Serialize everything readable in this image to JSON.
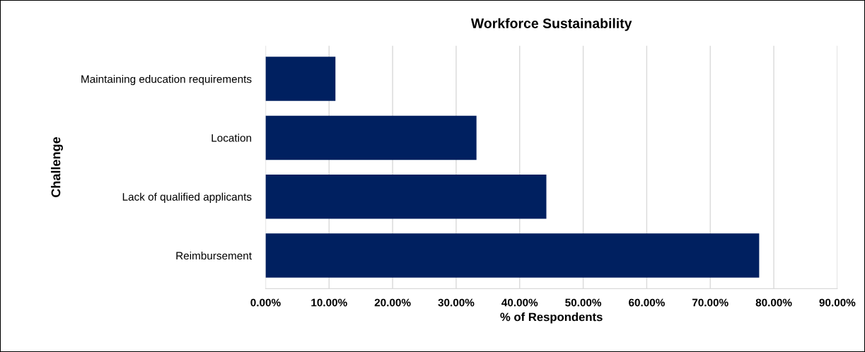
{
  "chart_data": {
    "type": "bar",
    "orientation": "horizontal",
    "title": "Workforce Sustainability",
    "xlabel": "% of Respondents",
    "ylabel": "Challenge",
    "categories": [
      "Maintaining education requirements",
      "Location",
      "Lack of qualified applicants",
      "Reimbursement"
    ],
    "values": [
      11.0,
      33.2,
      44.2,
      77.7
    ],
    "color": "#002060",
    "xlim": [
      0,
      90
    ],
    "xticks": [
      {
        "value": 0,
        "label": "0.00%"
      },
      {
        "value": 10,
        "label": "10.00%"
      },
      {
        "value": 20,
        "label": "20.00%"
      },
      {
        "value": 30,
        "label": "30.00%"
      },
      {
        "value": 40,
        "label": "40.00%"
      },
      {
        "value": 50,
        "label": "50.00%"
      },
      {
        "value": 60,
        "label": "60.00%"
      },
      {
        "value": 70,
        "label": "70.00%"
      },
      {
        "value": 80,
        "label": "80.00%"
      },
      {
        "value": 90,
        "label": "90.00%"
      }
    ],
    "grid": "x",
    "legend": false
  }
}
